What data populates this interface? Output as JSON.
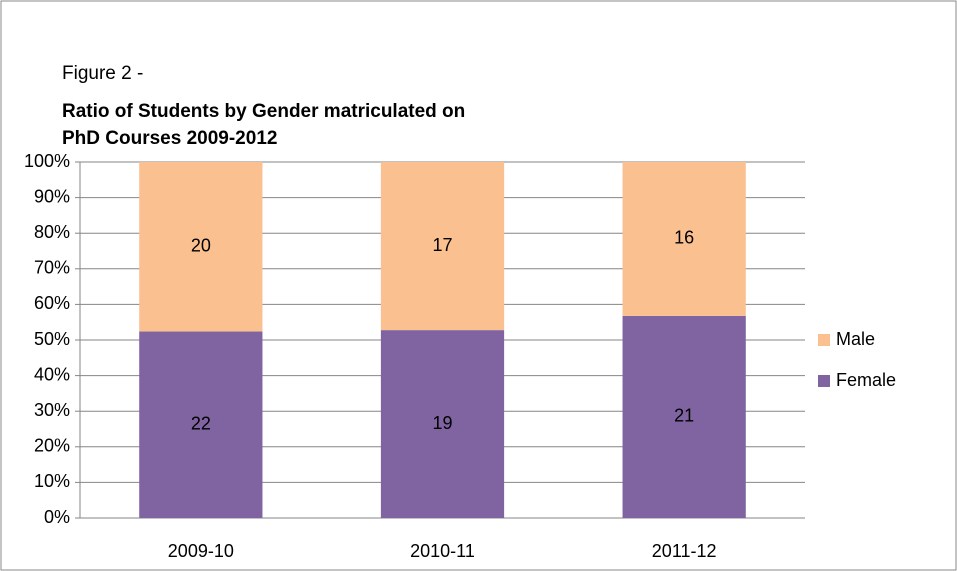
{
  "chart_data": {
    "type": "bar",
    "stacked_percent": true,
    "title": "Figure 2 -",
    "subtitle": "Ratio of Students by Gender matriculated on PhD Courses 2009-2012",
    "subtitle_lines": [
      "Ratio of Students by Gender matriculated on",
      "PhD Courses 2009-2012"
    ],
    "categories": [
      "2009-10",
      "2010-11",
      "2011-12"
    ],
    "series": [
      {
        "name": "Female",
        "color": "#8064a2",
        "values": [
          22,
          19,
          21
        ]
      },
      {
        "name": "Male",
        "color": "#fac090",
        "values": [
          20,
          17,
          16
        ]
      }
    ],
    "ylim": [
      0,
      100
    ],
    "yticks": [
      {
        "value": 0,
        "label": "0%"
      },
      {
        "value": 10,
        "label": "10%"
      },
      {
        "value": 20,
        "label": "20%"
      },
      {
        "value": 30,
        "label": "30%"
      },
      {
        "value": 40,
        "label": "40%"
      },
      {
        "value": 50,
        "label": "50%"
      },
      {
        "value": 60,
        "label": "60%"
      },
      {
        "value": 70,
        "label": "70%"
      },
      {
        "value": 80,
        "label": "80%"
      },
      {
        "value": 90,
        "label": "90%"
      },
      {
        "value": 100,
        "label": "100%"
      }
    ],
    "grid": true,
    "legend": "right"
  }
}
